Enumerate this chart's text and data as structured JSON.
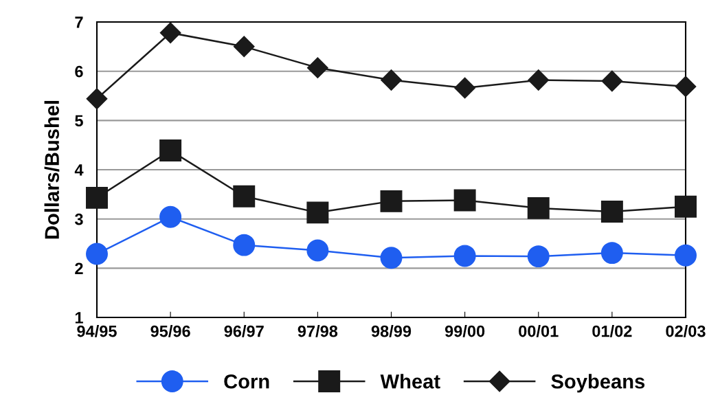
{
  "chart_data": {
    "type": "line",
    "ylabel": "Dollars/Bushel",
    "categories": [
      "94/95",
      "95/96",
      "96/97",
      "97/98",
      "98/99",
      "99/00",
      "00/01",
      "01/02",
      "02/03"
    ],
    "series": [
      {
        "name": "Corn",
        "color": "#1f5ef0",
        "marker": "circle",
        "values": [
          2.29,
          3.04,
          2.47,
          2.36,
          2.21,
          2.25,
          2.24,
          2.31,
          2.26
        ]
      },
      {
        "name": "Wheat",
        "color": "#1a1a1a",
        "marker": "square",
        "values": [
          3.43,
          4.39,
          3.46,
          3.13,
          3.36,
          3.38,
          3.22,
          3.15,
          3.25
        ]
      },
      {
        "name": "Soybeans",
        "color": "#1a1a1a",
        "marker": "diamond",
        "values": [
          5.44,
          6.78,
          6.5,
          6.07,
          5.82,
          5.66,
          5.82,
          5.8,
          5.69
        ]
      }
    ],
    "ylim": [
      1,
      7
    ],
    "yticks": [
      1,
      2,
      3,
      4,
      5,
      6,
      7
    ],
    "grid": "y",
    "legend": "bottom",
    "line_style": "solid"
  }
}
